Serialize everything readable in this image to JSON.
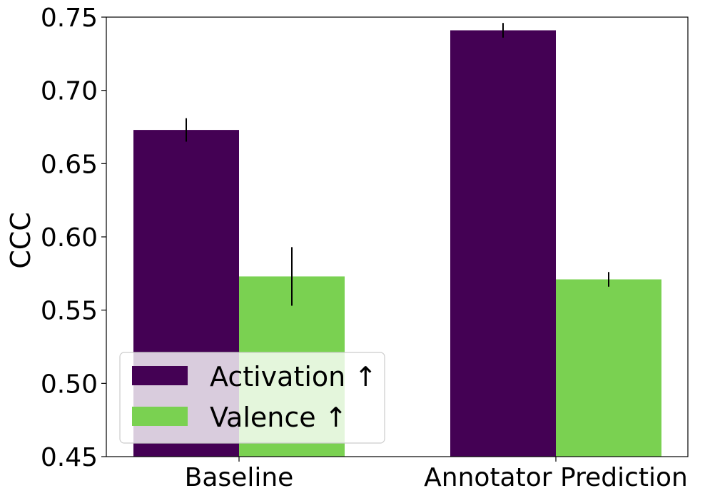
{
  "chart_data": {
    "type": "bar",
    "categories": [
      "Baseline",
      "Annotator Prediction"
    ],
    "series": [
      {
        "name": "Activation ↑",
        "values": [
          0.673,
          0.741
        ],
        "errors": [
          0.008,
          0.005
        ],
        "color": "#440154"
      },
      {
        "name": "Valence ↑",
        "values": [
          0.573,
          0.571
        ],
        "errors": [
          0.02,
          0.005
        ],
        "color": "#7ad151"
      }
    ],
    "ylabel": "CCC",
    "ylim": [
      0.45,
      0.75
    ],
    "yticks": [
      "0.45",
      "0.50",
      "0.55",
      "0.60",
      "0.65",
      "0.70",
      "0.75"
    ],
    "grid": false,
    "legend_position": "lower-left"
  }
}
